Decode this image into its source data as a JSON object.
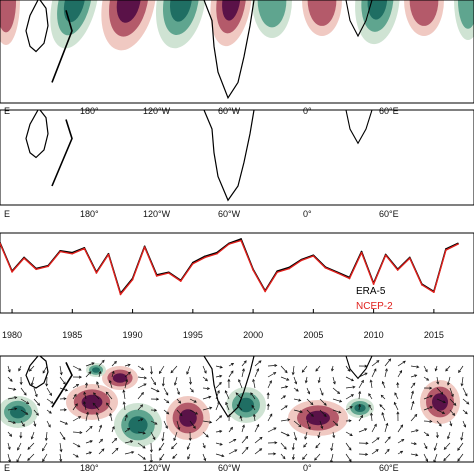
{
  "colors": {
    "green_dark": "#1f6e63",
    "green_mid": "#5fa58f",
    "green_light": "#cfe3d3",
    "purple_dark": "#5a1248",
    "red_mid": "#b45a6a",
    "pink_light": "#f0c9c2",
    "coast": "#000000",
    "era5": "#000000",
    "ncep2": "#e0201c"
  },
  "panels": {
    "map1": {
      "lon_labels": [
        "E",
        "180°",
        "120°W",
        "60°W",
        "0°",
        "60°E"
      ]
    },
    "map2": {
      "lon_labels": [
        "E",
        "180°",
        "120°W",
        "60°W",
        "0°",
        "60°E"
      ]
    },
    "map3": {
      "lon_labels": [
        "E",
        "180°",
        "120°W",
        "60°W",
        "0°",
        "60°E"
      ]
    }
  },
  "chart_data": {
    "type": "line",
    "x": [
      1979,
      1980,
      1981,
      1982,
      1983,
      1984,
      1985,
      1986,
      1987,
      1988,
      1989,
      1990,
      1991,
      1992,
      1993,
      1994,
      1995,
      1996,
      1997,
      1998,
      1999,
      2000,
      2001,
      2002,
      2003,
      2004,
      2005,
      2006,
      2007,
      2008,
      2009,
      2010,
      2011,
      2012,
      2013,
      2014,
      2015,
      2016,
      2017
    ],
    "xticks": [
      "1980",
      "1985",
      "1990",
      "1995",
      "2000",
      "2005",
      "2010",
      "2015"
    ],
    "xlim": [
      1979,
      2017.5
    ],
    "ylim": [
      -1,
      1
    ],
    "series": [
      {
        "name": "ERA-5",
        "values": [
          0.82,
          0.05,
          0.42,
          0.12,
          0.2,
          0.6,
          0.55,
          0.68,
          0.02,
          0.52,
          -0.55,
          -0.15,
          0.72,
          -0.05,
          0.02,
          -0.2,
          0.28,
          0.45,
          0.55,
          0.8,
          0.92,
          0.1,
          -0.48,
          0.05,
          0.15,
          0.36,
          0.48,
          0.16,
          0.02,
          -0.12,
          0.58,
          -0.28,
          0.5,
          0.1,
          0.42,
          -0.3,
          -0.5,
          0.65,
          0.8
        ]
      },
      {
        "name": "NCEP-2",
        "values": [
          0.8,
          0.03,
          0.4,
          0.1,
          0.18,
          0.58,
          0.52,
          0.66,
          0.0,
          0.5,
          -0.58,
          -0.18,
          0.7,
          -0.08,
          0.0,
          -0.22,
          0.25,
          0.42,
          0.52,
          0.78,
          0.88,
          0.08,
          -0.5,
          0.02,
          0.12,
          0.34,
          0.46,
          0.14,
          0.0,
          -0.15,
          0.55,
          -0.3,
          0.48,
          0.08,
          0.4,
          -0.32,
          -0.52,
          0.62,
          0.78
        ]
      }
    ]
  }
}
